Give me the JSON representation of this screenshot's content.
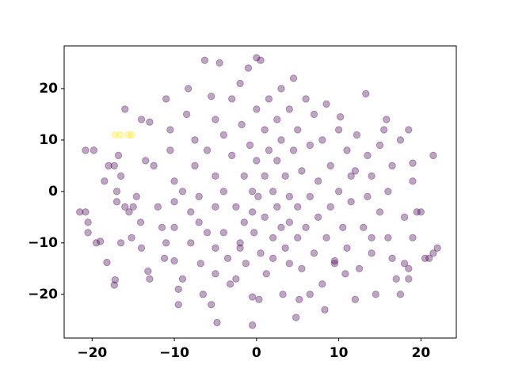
{
  "chart_data": {
    "type": "scatter",
    "xlim": [
      -23.4,
      24.3
    ],
    "ylim": [
      -28.5,
      28.3
    ],
    "xticks": [
      {
        "value": -20,
        "label": "−20"
      },
      {
        "value": -10,
        "label": "−10"
      },
      0,
      10,
      20
    ],
    "yticks": [
      {
        "value": -20,
        "label": "−20"
      },
      {
        "value": -10,
        "label": "−10"
      },
      0,
      10,
      20
    ],
    "series": [
      {
        "color": "#440154",
        "x": [
          -19.8,
          -20.8,
          -21.5,
          -20.8,
          -20.5,
          -20.5,
          -19.5,
          -19,
          -18.2,
          -17.2,
          -17.3,
          -18.5,
          -18,
          -17.3,
          -17,
          -17,
          -16,
          -16.5,
          -15.2,
          -15.5,
          -15,
          -16.5,
          -16.8,
          -16,
          -14.6,
          -14.1,
          -14,
          -13.2,
          -13,
          -14,
          -13,
          -13.5,
          -12.5,
          -12,
          -11.5,
          -11.2,
          -11,
          -11,
          -10.5,
          -10.5,
          -10,
          -10,
          -10,
          -10,
          -9.5,
          -9.5,
          -9,
          -9,
          -8.5,
          -8.3,
          -8,
          -8,
          -7.5,
          -7.5,
          -7,
          -7,
          -6.8,
          -6.5,
          -6.3,
          -6,
          -6,
          -5.5,
          -5,
          -5,
          -5,
          -5,
          -5,
          -5.5,
          -4.8,
          -4.5,
          -4,
          -4,
          -4,
          -3.5,
          -3.2,
          -3,
          -3,
          -2.5,
          -2,
          -2,
          -2.5,
          -2,
          -1.8,
          -1.5,
          -1.5,
          -1.3,
          -1,
          -0.8,
          -0.5,
          -0.5,
          -0.5,
          -0.3,
          -0.5,
          0,
          0,
          0,
          0.2,
          0.5,
          0.3,
          0.5,
          1,
          1,
          1,
          1.2,
          1.5,
          1.5,
          2,
          2,
          2,
          2.5,
          2.5,
          2.5,
          3,
          3,
          3,
          3.2,
          3.5,
          3.5,
          4,
          4,
          4,
          4,
          4.5,
          4.5,
          4.8,
          5,
          5,
          5,
          5.2,
          5.5,
          5.5,
          6,
          6,
          6.5,
          6.5,
          6.5,
          7,
          7,
          7.5,
          7.5,
          8,
          8,
          8.3,
          8.5,
          8.5,
          9,
          9,
          9.5,
          10,
          10,
          10.2,
          10.5,
          10.8,
          11,
          11,
          11.5,
          11.5,
          12,
          12.2,
          12.5,
          13,
          13.5,
          13.3,
          13.5,
          14,
          14,
          14.5,
          15,
          15,
          15.5,
          15.8,
          16,
          16,
          16.5,
          17,
          17.5,
          17.5,
          18,
          18,
          18.5,
          18.5,
          19,
          19,
          19.5,
          19,
          20,
          20.5,
          21,
          21.5,
          21.5,
          22,
          16.5,
          18.5,
          9.5,
          12,
          14
        ],
        "values": [
          8,
          8,
          -4,
          -4,
          -6,
          -8,
          -10,
          -9.7,
          -13.8,
          -17.2,
          -18.2,
          2,
          5,
          5,
          0,
          -2,
          -3,
          -10,
          -9,
          -4,
          -3,
          3,
          7,
          16,
          -1,
          -6,
          -11,
          -15.5,
          -17,
          14,
          13.5,
          6,
          5,
          -3,
          -7,
          -13,
          -10,
          18,
          12,
          8,
          2,
          -2,
          -7,
          -13.5,
          -19,
          -22,
          -17,
          0,
          15,
          20,
          -4,
          -10,
          10,
          5,
          -1,
          -6,
          -14,
          -20,
          25.5,
          8,
          -8,
          18.5,
          14,
          3,
          -3,
          -11,
          -16,
          -22,
          -25.5,
          25,
          11,
          0,
          -8,
          -13,
          -18,
          18,
          7,
          -3,
          21,
          -10,
          -17,
          -11,
          13,
          3,
          -6,
          -14,
          24,
          9,
          0,
          -4,
          -20.5,
          -8,
          -26,
          26,
          16,
          6,
          -1,
          -12,
          -21,
          25.5,
          12,
          3,
          -5,
          -16,
          18,
          8,
          0,
          -9,
          -13,
          14,
          6,
          -3,
          20,
          10,
          -7,
          -20,
          3,
          -11,
          16,
          -1,
          -6,
          -14,
          22,
          8,
          -24.5,
          12,
          -3,
          -9,
          -21,
          4,
          -15,
          18,
          -7,
          9,
          -1,
          -20,
          15,
          -12,
          -5,
          2,
          10,
          -18,
          -23,
          17,
          -9,
          5,
          -3,
          -14,
          12,
          0,
          14.5,
          -7,
          -16,
          8,
          -11,
          3,
          -2,
          -21,
          11,
          -15,
          -7,
          7,
          19,
          -1,
          3,
          -12,
          -20,
          -4,
          9,
          12,
          14,
          0,
          -9,
          5,
          -17,
          -20,
          10,
          -14,
          -5,
          12,
          -15,
          5.5,
          -9,
          -4,
          2,
          -4,
          -13,
          -13,
          -12,
          7,
          -11,
          -13,
          -17,
          -13.5,
          4,
          -9
        ]
      },
      {
        "color": "#fde725",
        "x": [
          -17.2,
          -16.6,
          -15.6,
          -15.2
        ],
        "values": [
          11,
          11,
          11,
          11
        ]
      }
    ]
  }
}
